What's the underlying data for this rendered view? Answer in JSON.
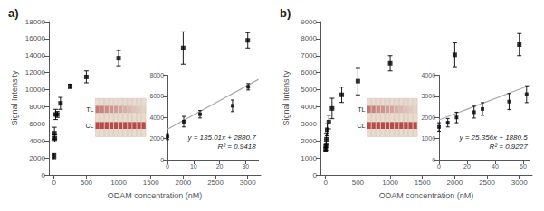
{
  "chart_data": [
    {
      "type": "scatter",
      "title": "a)",
      "x_label": "ODAM concentration (nM)",
      "y_label": "Signal Intensity",
      "x": [
        0,
        6.25,
        12.5,
        25,
        50,
        100,
        250,
        500,
        1000,
        2000,
        3000
      ],
      "series": [
        {
          "type": "scatter",
          "marker": "square",
          "color": "black",
          "values": [
            2200,
            4900,
            4300,
            7100,
            7100,
            8400,
            10400,
            11500,
            13700,
            14900,
            15800
          ],
          "yerr": [
            300,
            700,
            400,
            600,
            350,
            700,
            250,
            700,
            900,
            1900,
            900
          ]
        }
      ],
      "xlim": [
        -80,
        3200
      ],
      "xticks": [
        0,
        500,
        1000,
        1500,
        2000,
        2500,
        3000
      ],
      "ylim": [
        0,
        18000
      ],
      "yticks": [
        0,
        2000,
        4000,
        6000,
        8000,
        10000,
        12000,
        14000,
        16000,
        18000
      ],
      "grid": false,
      "annotations": [
        "TL",
        "CL"
      ]
    },
    {
      "type": "scatter",
      "series": [
        {
          "type": "line",
          "color": "#aaaaaa",
          "x": [
            0,
            35
          ],
          "values": [
            2880.7,
            7605.75
          ]
        },
        {
          "type": "scatter",
          "marker": "square",
          "color": "black",
          "x": [
            0,
            6.25,
            12.5,
            25,
            31
          ],
          "values": [
            2200,
            3600,
            4300,
            5100,
            6900
          ],
          "yerr": [
            300,
            500,
            350,
            550,
            300
          ]
        }
      ],
      "xlim": [
        0,
        35
      ],
      "xticks": [
        0,
        10,
        20,
        30
      ],
      "ylim": [
        0,
        8000
      ],
      "yticks": [
        0,
        2000,
        4000,
        6000,
        8000
      ],
      "grid": false,
      "annotations": [
        "y = 135.01x + 2880.7",
        "R² = 0.9418"
      ]
    },
    {
      "type": "scatter",
      "title": "b)",
      "x_label": "ODAM concentration (nM)",
      "y_label": "Signal Intensity",
      "x": [
        0,
        6.25,
        12.5,
        25,
        50,
        100,
        250,
        500,
        1000,
        2000,
        3000
      ],
      "series": [
        {
          "type": "scatter",
          "marker": "square",
          "color": "black",
          "values": [
            1550,
            1700,
            2100,
            2650,
            3100,
            3900,
            4700,
            5500,
            6550,
            7050,
            7650
          ],
          "yerr": [
            200,
            250,
            300,
            350,
            400,
            600,
            450,
            800,
            450,
            700,
            650
          ]
        }
      ],
      "xlim": [
        -80,
        3200
      ],
      "xticks": [
        0,
        500,
        1000,
        1500,
        2000,
        2500,
        3000
      ],
      "ylim": [
        0,
        9000
      ],
      "yticks": [
        0,
        1000,
        2000,
        3000,
        4000,
        5000,
        6000,
        7000,
        8000,
        9000
      ],
      "grid": false,
      "annotations": [
        "TL",
        "CL"
      ]
    },
    {
      "type": "scatter",
      "series": [
        {
          "type": "line",
          "color": "#aaaaaa",
          "x": [
            0,
            65
          ],
          "values": [
            1880.5,
            3528.64
          ]
        },
        {
          "type": "scatter",
          "marker": "square",
          "color": "black",
          "x": [
            0,
            6.25,
            12.5,
            25,
            31,
            50,
            62.5
          ],
          "values": [
            1550,
            1750,
            2000,
            2250,
            2400,
            2750,
            3100
          ],
          "yerr": [
            200,
            200,
            250,
            280,
            300,
            380,
            400
          ]
        }
      ],
      "xlim": [
        0,
        65
      ],
      "xticks": [
        0,
        20,
        40,
        60
      ],
      "ylim": [
        0,
        4000
      ],
      "yticks": [
        0,
        1000,
        2000,
        3000,
        4000
      ],
      "grid": false,
      "annotations": [
        "y = 25.356x + 1880.5",
        "R² = 0.9227"
      ]
    }
  ]
}
